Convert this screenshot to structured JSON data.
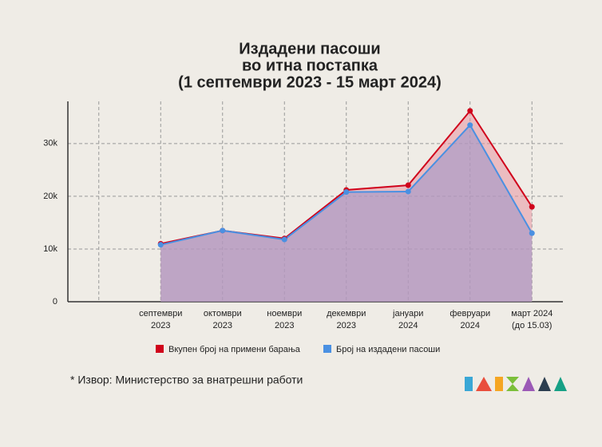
{
  "chart_data": {
    "type": "area",
    "title": [
      "Издадени пасоши",
      "во итна постапка",
      "(1 септември 2023 - 15 март 2024)"
    ],
    "categories": [
      null,
      [
        "септември",
        "2023"
      ],
      [
        "октомври",
        "2023"
      ],
      [
        "ноември",
        "2023"
      ],
      [
        "декември",
        "2023"
      ],
      [
        "јануари",
        "2024"
      ],
      [
        "февруари",
        "2024"
      ],
      [
        "март 2024",
        "(до 15.03)"
      ]
    ],
    "series": [
      {
        "name": "Вкупен број на примени барања",
        "color": "#d0021b",
        "values": [
          null,
          11000,
          13500,
          12000,
          21200,
          22100,
          36200,
          18000
        ]
      },
      {
        "name": "Број на издадени пасоши",
        "color": "#4a90e2",
        "values": [
          null,
          10800,
          13500,
          11800,
          20800,
          20900,
          33500,
          13000
        ]
      }
    ],
    "ylim": [
      0,
      38000
    ],
    "yticks": [
      0,
      {
        "value": 10000,
        "label": "10k"
      },
      {
        "value": 20000,
        "label": "20k"
      },
      {
        "value": 30000,
        "label": "30k"
      }
    ],
    "grid": true,
    "legend": "bottom",
    "note": "* Извор: Министерство за внатрешни работи"
  }
}
